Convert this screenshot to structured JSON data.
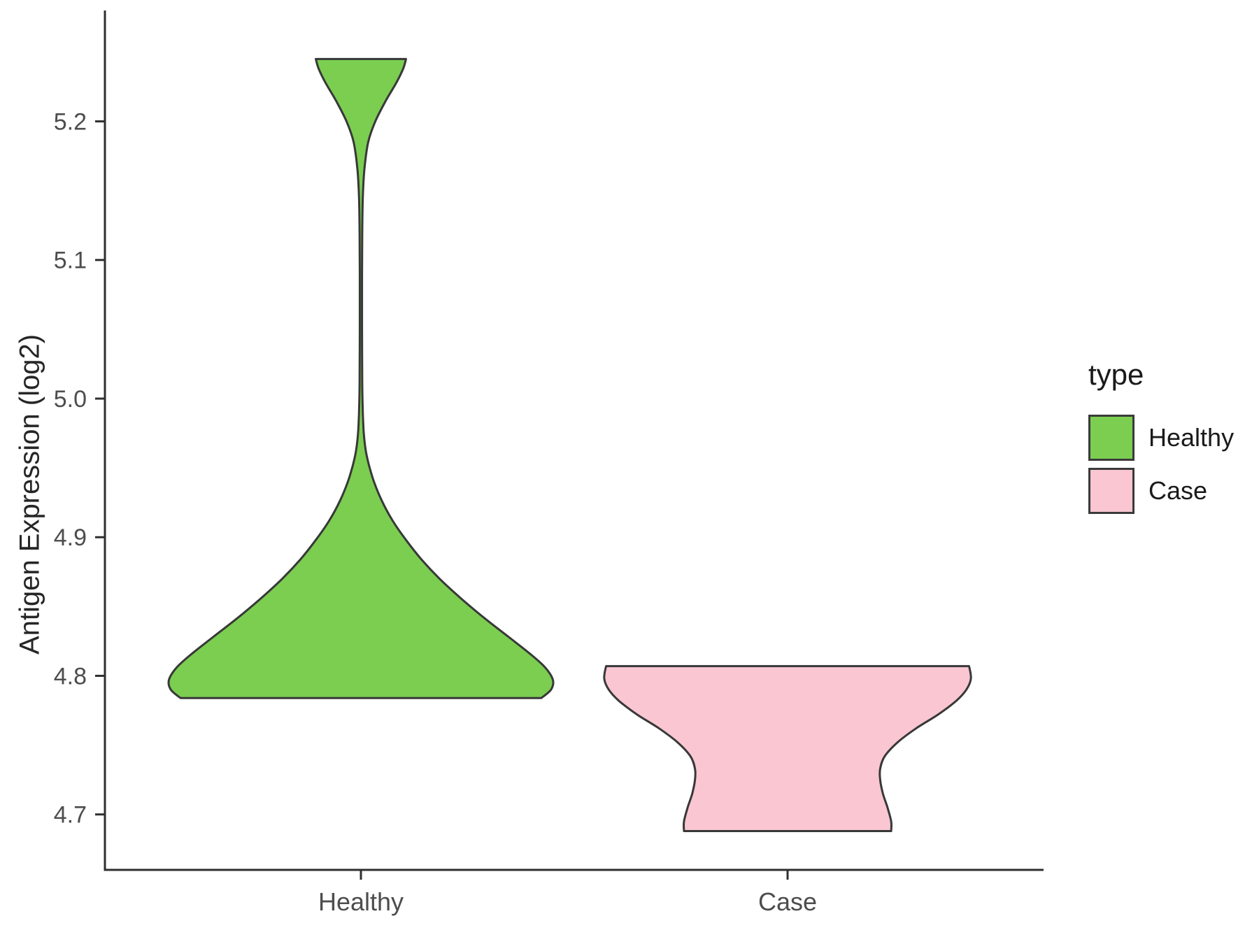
{
  "chart_data": {
    "type": "violin",
    "title": "",
    "xlabel": "",
    "ylabel": "Antigen Expression (log2)",
    "categories": [
      "Healthy",
      "Case"
    ],
    "y_ticks": [
      4.7,
      4.8,
      4.9,
      5.0,
      5.1,
      5.2
    ],
    "ylim": [
      4.66,
      5.28
    ],
    "grid": false,
    "axis_color": "#2f2f2f",
    "legend": {
      "title": "type",
      "position": "right",
      "entries": [
        {
          "label": "Healthy",
          "color": "#7BCE50"
        },
        {
          "label": "Case",
          "color": "#F9C6D2"
        }
      ]
    },
    "series": [
      {
        "name": "Healthy",
        "fill": "#7BCE50",
        "outline": "#383838",
        "y_range": [
          4.784,
          5.245
        ],
        "summary": "Dense mass between ~4.78 and ~4.9, widest near 4.80, with a long thin neck rising to a small secondary mode between ~5.16 and 5.245 (flat truncated top)",
        "width_scale": 1.0,
        "profile": [
          [
            4.784,
            0.94
          ],
          [
            4.79,
            0.99
          ],
          [
            4.797,
            1.0
          ],
          [
            4.806,
            0.96
          ],
          [
            4.816,
            0.88
          ],
          [
            4.828,
            0.77
          ],
          [
            4.842,
            0.64
          ],
          [
            4.856,
            0.52
          ],
          [
            4.87,
            0.41
          ],
          [
            4.884,
            0.315
          ],
          [
            4.898,
            0.235
          ],
          [
            4.912,
            0.165
          ],
          [
            4.926,
            0.11
          ],
          [
            4.94,
            0.068
          ],
          [
            4.952,
            0.042
          ],
          [
            4.962,
            0.026
          ],
          [
            4.975,
            0.015
          ],
          [
            4.99,
            0.01
          ],
          [
            5.01,
            0.007
          ],
          [
            5.05,
            0.006
          ],
          [
            5.09,
            0.006
          ],
          [
            5.12,
            0.007
          ],
          [
            5.145,
            0.01
          ],
          [
            5.165,
            0.018
          ],
          [
            5.185,
            0.038
          ],
          [
            5.2,
            0.075
          ],
          [
            5.215,
            0.13
          ],
          [
            5.228,
            0.185
          ],
          [
            5.238,
            0.22
          ],
          [
            5.245,
            0.235
          ]
        ]
      },
      {
        "name": "Case",
        "fill": "#F9C6D2",
        "outline": "#383838",
        "y_range": [
          4.688,
          4.807
        ],
        "summary": "Short wide distribution from ~4.69 to ~4.81, widest near 4.80, with a waist near 4.73 and a flat truncated bottom",
        "width_scale": 0.955,
        "profile": [
          [
            4.688,
            0.565
          ],
          [
            4.695,
            0.565
          ],
          [
            4.705,
            0.545
          ],
          [
            4.715,
            0.52
          ],
          [
            4.725,
            0.505
          ],
          [
            4.733,
            0.505
          ],
          [
            4.742,
            0.53
          ],
          [
            4.752,
            0.6
          ],
          [
            4.762,
            0.7
          ],
          [
            4.772,
            0.82
          ],
          [
            4.782,
            0.92
          ],
          [
            4.79,
            0.975
          ],
          [
            4.798,
            1.0
          ],
          [
            4.807,
            0.99
          ]
        ]
      }
    ]
  }
}
